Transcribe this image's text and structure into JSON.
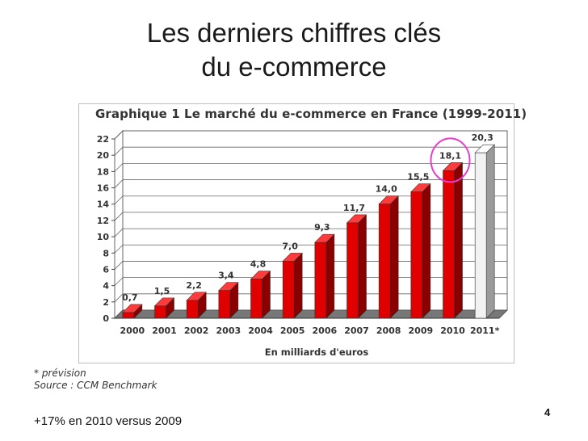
{
  "slide": {
    "title_line1": "Les derniers chiffres clés",
    "title_line2": "du e-commerce",
    "bottom_note": "+17% en 2010 versus 2009",
    "page_number": "4"
  },
  "footnotes": {
    "forecast": "* prévision",
    "source": "Source : CCM Benchmark"
  },
  "colors": {
    "bar_front": "#e00000",
    "bar_side": "#8a0000",
    "bar_top": "#ff3b3b",
    "forecast_front": "#f2f2f2",
    "forecast_side": "#9a9a9a",
    "highlight_circle": "#e63ccf",
    "floor": "#777777"
  },
  "chart_data": {
    "type": "bar",
    "title": "Graphique 1 Le marché du e-commerce en France (1999-2011)",
    "xlabel": "En milliards d'euros",
    "ylabel": "",
    "categories": [
      "2000",
      "2001",
      "2002",
      "2003",
      "2004",
      "2005",
      "2006",
      "2007",
      "2008",
      "2009",
      "2010",
      "2011*"
    ],
    "values": [
      0.7,
      1.5,
      2.2,
      3.4,
      4.8,
      7.0,
      9.3,
      11.7,
      14.0,
      15.5,
      18.1,
      20.3
    ],
    "value_labels": [
      "0,7",
      "1,5",
      "2,2",
      "3,4",
      "4,8",
      "7,0",
      "9,3",
      "11,7",
      "14,0",
      "15,5",
      "18,1",
      "20,3"
    ],
    "forecast_category": "2011*",
    "highlighted_category": "2010",
    "ylim": [
      0,
      22
    ],
    "yticks": [
      0,
      2,
      4,
      6,
      8,
      10,
      12,
      14,
      16,
      18,
      20,
      22
    ],
    "grid": true,
    "legend": "none"
  }
}
